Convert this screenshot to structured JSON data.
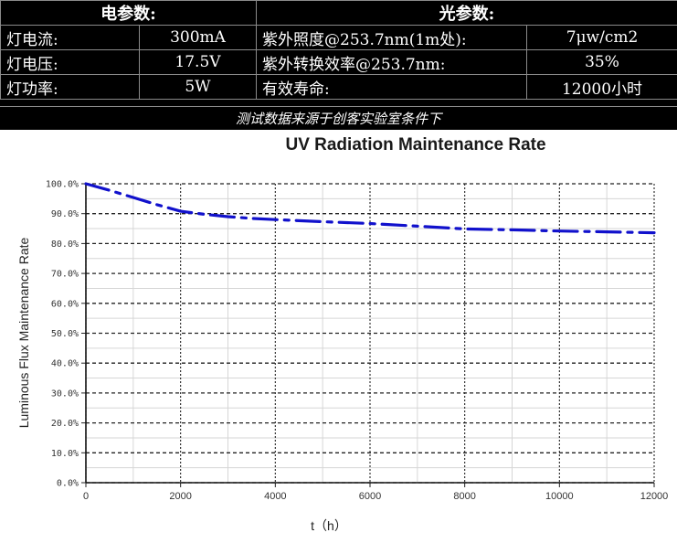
{
  "spec_table": {
    "electrical_header": "电参数:",
    "optical_header": "光参数:",
    "rows": [
      {
        "elabel": "灯电流:",
        "evalue": "300mA",
        "olabel": "紫外照度@253.7nm(1m处):",
        "ovalue": "7μw/cm2"
      },
      {
        "elabel": "灯电压:",
        "evalue": "17.5V",
        "olabel": "紫外转换效率@253.7nm:",
        "ovalue": "35%"
      },
      {
        "elabel": "灯功率:",
        "evalue": "5W",
        "olabel": "有效寿命:",
        "ovalue": "12000小时"
      }
    ],
    "note": "测试数据来源于创客实验室条件下"
  },
  "chart_data": {
    "type": "line",
    "title": "UV Radiation Maintenance Rate",
    "xlabel": "t（h）",
    "ylabel": "Luminous Flux Maintenance Rate",
    "xlim": [
      0,
      12000
    ],
    "ylim": [
      0,
      100
    ],
    "x_ticks": [
      0,
      2000,
      4000,
      6000,
      8000,
      10000,
      12000
    ],
    "x_tick_labels": [
      "0",
      "2000",
      "4000",
      "6000",
      "8000",
      "10000",
      "12000"
    ],
    "y_ticks": [
      0,
      10,
      20,
      30,
      40,
      50,
      60,
      70,
      80,
      90,
      100
    ],
    "y_tick_labels": [
      "0.0%",
      "10.0%",
      "20.0%",
      "30.0%",
      "40.0%",
      "50.0%",
      "60.0%",
      "70.0%",
      "80.0%",
      "90.0%",
      "100.0%"
    ],
    "grid": true,
    "series": [
      {
        "color": "#1111cc",
        "line_style": "dash-dot",
        "x": [
          0,
          500,
          1000,
          1500,
          2000,
          2500,
          3000,
          3500,
          4000,
          5000,
          6000,
          7000,
          8000,
          9000,
          10000,
          11000,
          12000
        ],
        "y": [
          100,
          97.8,
          95.4,
          93.0,
          90.8,
          89.8,
          89.0,
          88.4,
          88.0,
          87.3,
          86.7,
          85.8,
          84.9,
          84.6,
          84.2,
          83.9,
          83.6
        ]
      }
    ]
  }
}
